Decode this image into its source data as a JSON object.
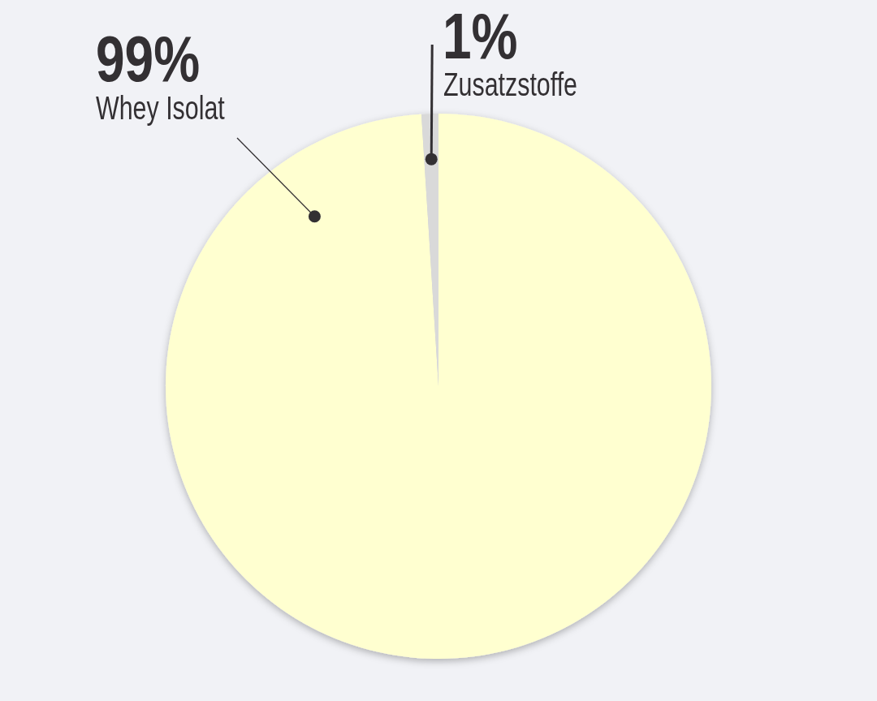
{
  "chart_data": {
    "type": "pie",
    "categories": [
      "Whey Isolat",
      "Zusatzstoffe"
    ],
    "values": [
      99,
      1
    ],
    "colors": [
      "#ffffd0",
      "#d9d9d9"
    ],
    "value_labels": [
      "99%",
      "1%"
    ]
  }
}
